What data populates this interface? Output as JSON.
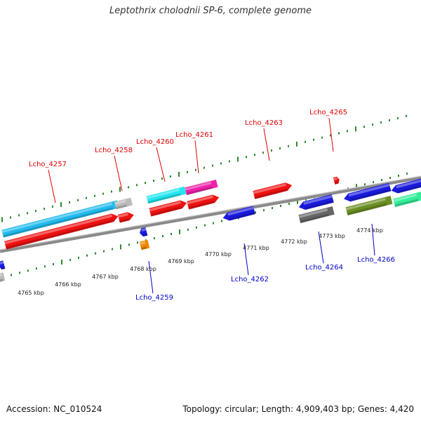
{
  "title": "Leptothrix cholodnii SP-6, complete genome",
  "footer": {
    "accession": "Accession: NC_010524",
    "summary": "Topology: circular; Length: 4,909,403 bp; Genes: 4,420"
  },
  "scale_labels": [
    "4765 kbp",
    "4766 kbp",
    "4767 kbp",
    "4768 kbp",
    "4769 kbp",
    "4770 kbp",
    "4771 kbp",
    "4772 kbp",
    "4773 kbp",
    "4774 kbp"
  ],
  "genes_upper": [
    {
      "name": "Lcho_4257",
      "color": "#dd0000"
    },
    {
      "name": "Lcho_4258",
      "color": "#dd0000"
    },
    {
      "name": "Lcho_4260",
      "color": "#dd0000"
    },
    {
      "name": "Lcho_4261",
      "color": "#dd0000"
    },
    {
      "name": "Lcho_4263",
      "color": "#dd0000"
    },
    {
      "name": "Lcho_4265",
      "color": "#dd0000"
    }
  ],
  "genes_lower": [
    {
      "name": "Lcho_4259",
      "color": "#0000cc"
    },
    {
      "name": "Lcho_4262",
      "color": "#0000cc"
    },
    {
      "name": "Lcho_4264",
      "color": "#0000cc"
    },
    {
      "name": "Lcho_4266",
      "color": "#0000cc"
    }
  ],
  "colors": {
    "backbone": "#8a8a8a",
    "tick": "#2a8a2a",
    "forward_gene": "#ee1111",
    "reverse_gene": "#1a1add",
    "cyan": "#22bbee",
    "magenta": "#ee22aa",
    "olive": "#6b8e23",
    "mint": "#33ee99",
    "grey_gene": "#bbbbbb",
    "dark_grey_gene": "#666666",
    "orange": "#ee8800"
  }
}
